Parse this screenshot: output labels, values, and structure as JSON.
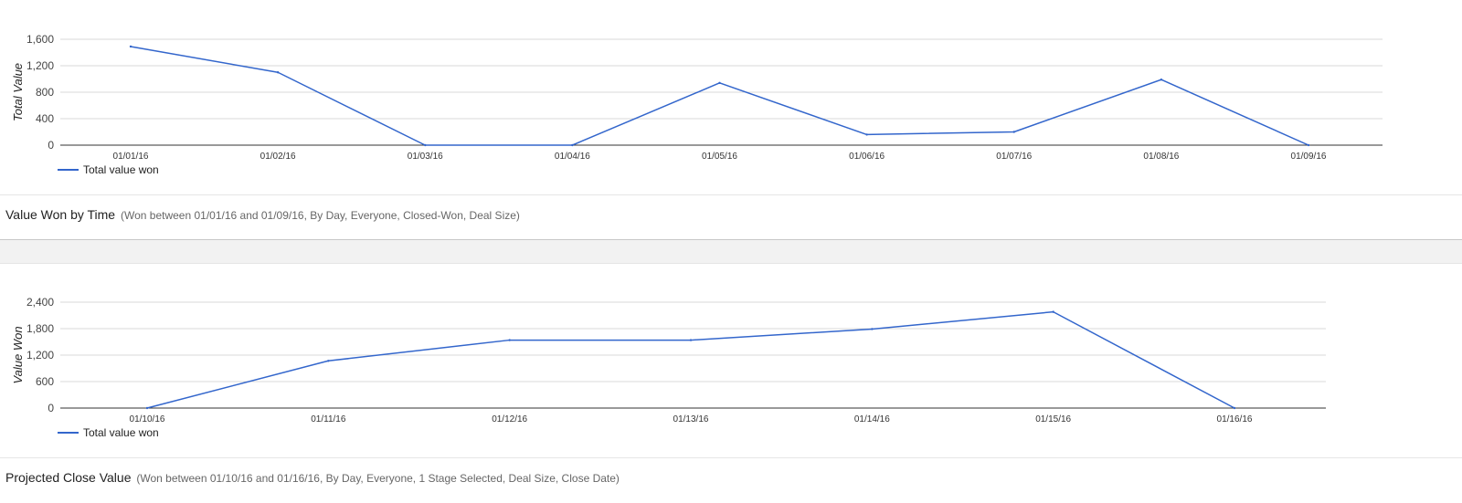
{
  "charts": [
    {
      "title": "Value Won by Time",
      "subtitle": "(Won between 01/01/16 and 01/09/16, By Day, Everyone, Closed-Won, Deal Size)"
    },
    {
      "title": "Projected Close Value",
      "subtitle": "(Won between 01/10/16 and 01/16/16, By Day, Everyone, 1 Stage Selected, Deal Size, Close Date)"
    }
  ],
  "chart_data": [
    {
      "type": "line",
      "ylabel": "Total Value",
      "xlabel": "",
      "categories": [
        "01/01/16",
        "01/02/16",
        "01/03/16",
        "01/04/16",
        "01/05/16",
        "01/06/16",
        "01/07/16",
        "01/08/16",
        "01/09/16"
      ],
      "series": [
        {
          "name": "Total value won",
          "values": [
            1490,
            1100,
            0,
            0,
            940,
            160,
            200,
            990,
            0
          ]
        }
      ],
      "ylim": [
        0,
        1600
      ],
      "yticks": [
        "0",
        "400",
        "800",
        "1,200",
        "1,600"
      ],
      "ytick_values": [
        0,
        400,
        800,
        1200,
        1600
      ],
      "grid": true,
      "legend": "bottom-left",
      "color": "#3366cc"
    },
    {
      "type": "line",
      "ylabel": "Value Won",
      "xlabel": "",
      "categories": [
        "01/10/16",
        "01/11/16",
        "01/12/16",
        "01/13/16",
        "01/14/16",
        "01/15/16",
        "01/16/16"
      ],
      "series": [
        {
          "name": "Total value won",
          "values": [
            0,
            1070,
            1540,
            1540,
            1790,
            2180,
            0
          ]
        }
      ],
      "ylim": [
        0,
        2400
      ],
      "yticks": [
        "0",
        "600",
        "1,200",
        "1,800",
        "2,400"
      ],
      "ytick_values": [
        0,
        600,
        1200,
        1800,
        2400
      ],
      "grid": true,
      "legend": "bottom-left",
      "color": "#3366cc"
    }
  ]
}
